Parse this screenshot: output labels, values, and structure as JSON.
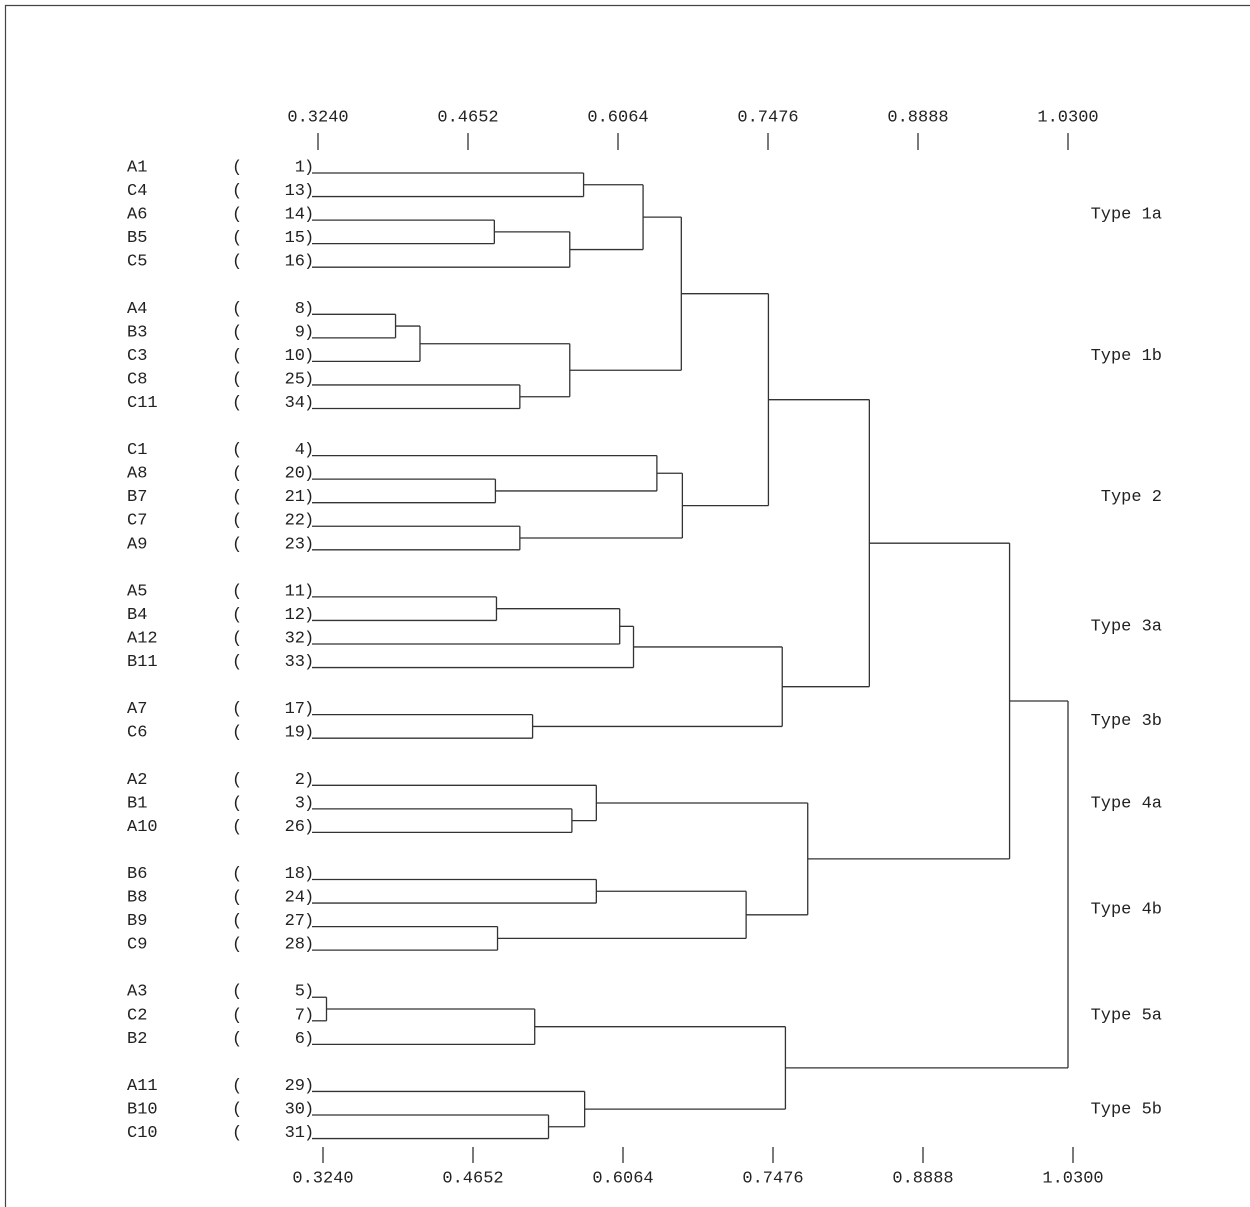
{
  "dendrogram": {
    "axis_ticks": [
      {
        "value": 0.324,
        "label": "0.3240"
      },
      {
        "value": 0.4652,
        "label": "0.4652"
      },
      {
        "value": 0.6064,
        "label": "0.6064"
      },
      {
        "value": 0.7476,
        "label": "0.7476"
      },
      {
        "value": 0.8888,
        "label": "0.8888"
      },
      {
        "value": 1.03,
        "label": "1.0300"
      }
    ],
    "xlim": [
      0.324,
      1.03
    ],
    "leaves": [
      {
        "label": "A1",
        "number": 1
      },
      {
        "label": "C4",
        "number": 13
      },
      {
        "label": "A6",
        "number": 14
      },
      {
        "label": "B5",
        "number": 15
      },
      {
        "label": "C5",
        "number": 16
      },
      {
        "label": "A4",
        "number": 8
      },
      {
        "label": "B3",
        "number": 9
      },
      {
        "label": "C3",
        "number": 10
      },
      {
        "label": "C8",
        "number": 25
      },
      {
        "label": "C11",
        "number": 34
      },
      {
        "label": "C1",
        "number": 4
      },
      {
        "label": "A8",
        "number": 20
      },
      {
        "label": "B7",
        "number": 21
      },
      {
        "label": "C7",
        "number": 22
      },
      {
        "label": "A9",
        "number": 23
      },
      {
        "label": "A5",
        "number": 11
      },
      {
        "label": "B4",
        "number": 12
      },
      {
        "label": "A12",
        "number": 32
      },
      {
        "label": "B11",
        "number": 33
      },
      {
        "label": "A7",
        "number": 17
      },
      {
        "label": "C6",
        "number": 19
      },
      {
        "label": "A2",
        "number": 2
      },
      {
        "label": "B1",
        "number": 3
      },
      {
        "label": "A10",
        "number": 26
      },
      {
        "label": "B6",
        "number": 18
      },
      {
        "label": "B8",
        "number": 24
      },
      {
        "label": "B9",
        "number": 27
      },
      {
        "label": "C9",
        "number": 28
      },
      {
        "label": "A3",
        "number": 5
      },
      {
        "label": "C2",
        "number": 7
      },
      {
        "label": "B2",
        "number": 6
      },
      {
        "label": "A11",
        "number": 29
      },
      {
        "label": "B10",
        "number": 30
      },
      {
        "label": "C10",
        "number": 31
      }
    ],
    "groups": [
      {
        "label": "Type 1a",
        "leaves": [
          0,
          4
        ]
      },
      {
        "label": "Type 1b",
        "leaves": [
          5,
          9
        ]
      },
      {
        "label": "Type 2",
        "leaves": [
          10,
          14
        ]
      },
      {
        "label": "Type 3a",
        "leaves": [
          15,
          18
        ]
      },
      {
        "label": "Type 3b",
        "leaves": [
          19,
          20
        ]
      },
      {
        "label": "Type 4a",
        "leaves": [
          21,
          23
        ]
      },
      {
        "label": "Type 4b",
        "leaves": [
          24,
          27
        ]
      },
      {
        "label": "Type 5a",
        "leaves": [
          28,
          30
        ]
      },
      {
        "label": "Type 5b",
        "leaves": [
          31,
          33
        ]
      }
    ],
    "merges": [
      {
        "a": 0,
        "b": 1,
        "height": 0.574
      },
      {
        "a": 2,
        "b": 3,
        "height": 0.49
      },
      {
        "a": 35,
        "b": 4,
        "height": 0.561
      },
      {
        "a": 34,
        "b": 36,
        "height": 0.63
      },
      {
        "a": 5,
        "b": 6,
        "height": 0.397
      },
      {
        "a": 38,
        "b": 7,
        "height": 0.42
      },
      {
        "a": 8,
        "b": 9,
        "height": 0.514
      },
      {
        "a": 39,
        "b": 40,
        "height": 0.561
      },
      {
        "a": 37,
        "b": 41,
        "height": 0.666
      },
      {
        "a": 11,
        "b": 12,
        "height": 0.491
      },
      {
        "a": 13,
        "b": 14,
        "height": 0.514
      },
      {
        "a": 10,
        "b": 43,
        "height": 0.643
      },
      {
        "a": 45,
        "b": 44,
        "height": 0.667
      },
      {
        "a": 42,
        "b": 46,
        "height": 0.748
      },
      {
        "a": 15,
        "b": 16,
        "height": 0.492
      },
      {
        "a": 17,
        "b": 48,
        "height": 0.608
      },
      {
        "a": 49,
        "b": 18,
        "height": 0.621
      },
      {
        "a": 19,
        "b": 20,
        "height": 0.526
      },
      {
        "a": 50,
        "b": 51,
        "height": 0.761
      },
      {
        "a": 47,
        "b": 52,
        "height": 0.843
      },
      {
        "a": 22,
        "b": 23,
        "height": 0.563
      },
      {
        "a": 21,
        "b": 54,
        "height": 0.586
      },
      {
        "a": 24,
        "b": 25,
        "height": 0.586
      },
      {
        "a": 26,
        "b": 27,
        "height": 0.493
      },
      {
        "a": 56,
        "b": 57,
        "height": 0.727
      },
      {
        "a": 55,
        "b": 58,
        "height": 0.785
      },
      {
        "a": 53,
        "b": 59,
        "height": 0.975
      },
      {
        "a": 28,
        "b": 29,
        "height": 0.332
      },
      {
        "a": 61,
        "b": 30,
        "height": 0.528
      },
      {
        "a": 32,
        "b": 33,
        "height": 0.541
      },
      {
        "a": 31,
        "b": 63,
        "height": 0.575
      },
      {
        "a": 62,
        "b": 64,
        "height": 0.764
      },
      {
        "a": 60,
        "b": 65,
        "height": 1.03
      }
    ]
  }
}
